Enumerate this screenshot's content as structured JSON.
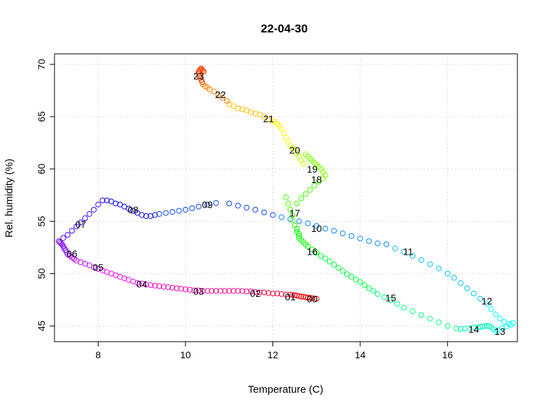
{
  "chart_data": {
    "type": "scatter",
    "title": "22-04-30",
    "xlabel": "Temperature (C)",
    "ylabel": "Rel. humidity (%)",
    "xlim": [
      7.0,
      17.6
    ],
    "ylim": [
      43.5,
      71.0
    ],
    "xticks": [
      8,
      10,
      12,
      14,
      16
    ],
    "yticks": [
      45,
      50,
      55,
      60,
      65,
      70
    ],
    "grid": true,
    "color_scale": "rainbow by hour of day (red 00 → red 23)",
    "hour_labels": [
      {
        "label": "00",
        "x": 12.9,
        "y": 47.6
      },
      {
        "label": "01",
        "x": 12.4,
        "y": 47.8
      },
      {
        "label": "02",
        "x": 11.6,
        "y": 48.1
      },
      {
        "label": "03",
        "x": 10.3,
        "y": 48.3
      },
      {
        "label": "04",
        "x": 9.0,
        "y": 49.0
      },
      {
        "label": "05",
        "x": 8.0,
        "y": 50.6
      },
      {
        "label": "06",
        "x": 7.4,
        "y": 51.9
      },
      {
        "label": "07",
        "x": 7.6,
        "y": 54.7
      },
      {
        "label": "08",
        "x": 8.8,
        "y": 56.1
      },
      {
        "label": "09",
        "x": 10.5,
        "y": 56.6
      },
      {
        "label": "10",
        "x": 13.0,
        "y": 54.3
      },
      {
        "label": "11",
        "x": 15.1,
        "y": 52.1
      },
      {
        "label": "12",
        "x": 16.9,
        "y": 47.4
      },
      {
        "label": "13",
        "x": 17.2,
        "y": 44.5
      },
      {
        "label": "14",
        "x": 16.6,
        "y": 44.7
      },
      {
        "label": "15",
        "x": 14.7,
        "y": 47.7
      },
      {
        "label": "16",
        "x": 12.9,
        "y": 52.1
      },
      {
        "label": "17",
        "x": 12.5,
        "y": 55.8
      },
      {
        "label": "18",
        "x": 13.0,
        "y": 59.0
      },
      {
        "label": "19",
        "x": 12.9,
        "y": 60.0
      },
      {
        "label": "20",
        "x": 12.5,
        "y": 61.8
      },
      {
        "label": "21",
        "x": 11.9,
        "y": 64.8
      },
      {
        "label": "22",
        "x": 10.8,
        "y": 67.1
      },
      {
        "label": "23",
        "x": 10.3,
        "y": 68.9
      }
    ],
    "series": [
      {
        "name": "00",
        "color": "#ff0000",
        "x": [
          13.0,
          12.9,
          12.85,
          12.8,
          12.75,
          12.7,
          12.65,
          12.6,
          12.55,
          12.5
        ],
        "y": [
          47.6,
          47.65,
          47.7,
          47.7,
          47.75,
          47.8,
          47.8,
          47.85,
          47.9,
          47.95
        ]
      },
      {
        "name": "01",
        "color": "#ff0040",
        "x": [
          12.45,
          12.4,
          12.3,
          12.2,
          12.1,
          12.0,
          11.9,
          11.8,
          11.7
        ],
        "y": [
          47.95,
          48.0,
          48.0,
          48.05,
          48.1,
          48.1,
          48.15,
          48.2,
          48.2
        ]
      },
      {
        "name": "02",
        "color": "#ff0080",
        "x": [
          11.6,
          11.5,
          11.4,
          11.3,
          11.2,
          11.1,
          11.0,
          10.9,
          10.8,
          10.7,
          10.6,
          10.5
        ],
        "y": [
          48.25,
          48.3,
          48.3,
          48.35,
          48.35,
          48.35,
          48.35,
          48.35,
          48.35,
          48.35,
          48.35,
          48.35
        ]
      },
      {
        "name": "03",
        "color": "#ff00bf",
        "x": [
          10.4,
          10.3,
          10.2,
          10.1,
          10.0,
          9.9,
          9.8,
          9.7,
          9.6,
          9.5,
          9.4,
          9.3
        ],
        "y": [
          48.35,
          48.4,
          48.4,
          48.45,
          48.5,
          48.55,
          48.6,
          48.65,
          48.7,
          48.75,
          48.8,
          48.85
        ]
      },
      {
        "name": "04",
        "color": "#ff00ff",
        "x": [
          9.2,
          9.1,
          9.0,
          8.9,
          8.8,
          8.7,
          8.6,
          8.5,
          8.4,
          8.3,
          8.2,
          8.1
        ],
        "y": [
          48.9,
          48.95,
          49.05,
          49.1,
          49.25,
          49.4,
          49.55,
          49.7,
          49.85,
          50.0,
          50.15,
          50.3
        ]
      },
      {
        "name": "05",
        "color": "#bf00ff",
        "x": [
          8.0,
          7.9,
          7.8,
          7.7,
          7.6,
          7.5,
          7.45,
          7.4,
          7.35
        ],
        "y": [
          50.45,
          50.6,
          50.8,
          50.95,
          51.1,
          51.25,
          51.4,
          51.55,
          51.7
        ]
      },
      {
        "name": "06",
        "color": "#8000ff",
        "x": [
          7.3,
          7.28,
          7.25,
          7.22,
          7.2,
          7.18,
          7.15,
          7.12,
          7.1
        ],
        "y": [
          51.85,
          52.05,
          52.25,
          52.45,
          52.6,
          52.75,
          52.9,
          53.0,
          53.1
        ]
      },
      {
        "name": "07",
        "color": "#4000ff",
        "x": [
          7.2,
          7.3,
          7.4,
          7.5,
          7.6,
          7.7,
          7.8,
          7.9,
          8.0,
          8.1
        ],
        "y": [
          53.4,
          53.7,
          54.1,
          54.5,
          54.9,
          55.3,
          55.7,
          56.1,
          56.6,
          57.0
        ]
      },
      {
        "name": "08",
        "color": "#0000ff",
        "x": [
          8.2,
          8.3,
          8.4,
          8.5,
          8.6,
          8.7,
          8.8,
          8.9,
          9.0,
          9.1,
          9.2,
          9.3
        ],
        "y": [
          57.0,
          56.9,
          56.7,
          56.6,
          56.4,
          56.2,
          56.0,
          55.8,
          55.6,
          55.5,
          55.5,
          55.6
        ]
      },
      {
        "name": "09",
        "color": "#0040ff",
        "x": [
          9.4,
          9.55,
          9.7,
          9.85,
          10.0,
          10.15,
          10.3,
          10.5,
          10.7,
          11.0,
          11.2,
          11.4,
          11.6,
          11.8,
          12.0
        ],
        "y": [
          55.7,
          55.8,
          55.9,
          56.0,
          56.1,
          56.25,
          56.4,
          56.6,
          56.75,
          56.7,
          56.5,
          56.3,
          56.1,
          55.85,
          55.6
        ]
      },
      {
        "name": "10",
        "color": "#0080ff",
        "x": [
          12.2,
          12.4,
          12.6,
          12.8,
          13.0,
          13.2,
          13.4,
          13.6,
          13.8,
          14.0,
          14.2,
          14.4,
          14.6
        ],
        "y": [
          55.4,
          55.2,
          55.0,
          54.8,
          54.55,
          54.3,
          54.1,
          53.85,
          53.6,
          53.35,
          53.1,
          52.9,
          52.8
        ]
      },
      {
        "name": "11",
        "color": "#00bfff",
        "x": [
          14.8,
          15.0,
          15.2,
          15.4,
          15.6,
          15.8,
          16.0,
          16.15,
          16.3,
          16.45,
          16.6,
          16.75
        ],
        "y": [
          52.4,
          52.1,
          51.7,
          51.3,
          50.9,
          50.5,
          50.0,
          49.6,
          49.1,
          48.6,
          48.1,
          47.6
        ]
      },
      {
        "name": "12",
        "color": "#00ffff",
        "x": [
          16.9,
          17.0,
          17.1,
          17.2,
          17.3,
          17.4,
          17.5,
          17.45,
          17.35,
          17.25,
          17.15,
          17.1
        ],
        "y": [
          47.1,
          46.6,
          46.1,
          45.7,
          45.4,
          45.2,
          45.3,
          45.1,
          44.95,
          44.8,
          44.6,
          44.45
        ]
      },
      {
        "name": "13",
        "color": "#00ffbf",
        "x": [
          17.05,
          17.0,
          16.95,
          16.9,
          16.85,
          16.8,
          16.75,
          16.7,
          16.6,
          16.5,
          16.4,
          16.3
        ],
        "y": [
          44.7,
          44.9,
          45.0,
          45.0,
          45.0,
          44.95,
          44.9,
          44.9,
          44.85,
          44.8,
          44.75,
          44.7
        ]
      },
      {
        "name": "14",
        "color": "#00ff80",
        "x": [
          16.2,
          16.0,
          15.8,
          15.6,
          15.4,
          15.2,
          15.0,
          14.85,
          14.7,
          14.55,
          14.4,
          14.3
        ],
        "y": [
          44.75,
          45.0,
          45.35,
          45.7,
          46.05,
          46.4,
          46.75,
          47.1,
          47.45,
          47.75,
          48.05,
          48.35
        ]
      },
      {
        "name": "15",
        "color": "#00ff40",
        "x": [
          14.2,
          14.1,
          14.0,
          13.9,
          13.8,
          13.7,
          13.6,
          13.5,
          13.4,
          13.3,
          13.2,
          13.1
        ],
        "y": [
          48.6,
          48.9,
          49.2,
          49.45,
          49.7,
          49.95,
          50.25,
          50.55,
          50.85,
          51.15,
          51.45,
          51.7
        ]
      },
      {
        "name": "16",
        "color": "#00ff00",
        "x": [
          13.0,
          12.9,
          12.8,
          12.75,
          12.7,
          12.65,
          12.6,
          12.6,
          12.6,
          12.55,
          12.55
        ],
        "y": [
          52.0,
          52.3,
          52.6,
          52.8,
          53.0,
          53.2,
          53.4,
          53.6,
          53.8,
          54.0,
          54.3
        ]
      },
      {
        "name": "17",
        "color": "#40ff00",
        "x": [
          12.5,
          12.45,
          12.45,
          12.4,
          12.35,
          12.3,
          12.55,
          12.65,
          12.75,
          12.85,
          12.95,
          13.05
        ],
        "y": [
          54.6,
          55.1,
          55.6,
          56.1,
          56.7,
          57.3,
          56.7,
          57.2,
          57.6,
          58.0,
          58.4,
          58.8
        ]
      },
      {
        "name": "18",
        "color": "#80ff00",
        "x": [
          13.15,
          13.2,
          13.15,
          13.1,
          13.05,
          13.0,
          12.95,
          12.9,
          12.85,
          12.8,
          12.75
        ],
        "y": [
          59.1,
          59.4,
          59.7,
          60.0,
          60.2,
          60.4,
          60.6,
          60.8,
          61.0,
          61.2,
          61.4
        ]
      },
      {
        "name": "19",
        "color": "#bfff00",
        "x": [
          12.7,
          12.65,
          12.6,
          12.55,
          12.5,
          12.45,
          12.4
        ],
        "y": [
          60.5,
          60.8,
          61.2,
          61.5,
          61.8,
          62.0,
          62.2
        ]
      },
      {
        "name": "20",
        "color": "#ffff00",
        "x": [
          12.35,
          12.3,
          12.25,
          12.2,
          12.15,
          12.1,
          12.05,
          12.0
        ],
        "y": [
          62.6,
          63.0,
          63.4,
          63.8,
          64.1,
          64.3,
          64.5,
          64.6
        ]
      },
      {
        "name": "21",
        "color": "#ffbf00",
        "x": [
          11.9,
          11.8,
          11.7,
          11.6,
          11.5,
          11.4,
          11.3,
          11.2,
          11.1,
          11.0
        ],
        "y": [
          64.8,
          65.0,
          65.2,
          65.3,
          65.4,
          65.6,
          65.7,
          65.8,
          66.0,
          66.2
        ]
      },
      {
        "name": "22",
        "color": "#ff8000",
        "x": [
          10.95,
          10.85,
          10.75,
          10.65,
          10.55,
          10.5,
          10.45,
          10.4
        ],
        "y": [
          66.5,
          66.8,
          67.1,
          67.4,
          67.6,
          67.8,
          67.9,
          68.1
        ]
      },
      {
        "name": "23",
        "color": "#ff4000",
        "x": [
          10.38,
          10.36,
          10.34,
          10.32,
          10.3,
          10.3,
          10.32,
          10.34,
          10.36,
          10.38,
          10.4,
          10.42
        ],
        "y": [
          68.3,
          68.5,
          68.7,
          68.9,
          69.1,
          69.3,
          69.4,
          69.5,
          69.6,
          69.5,
          69.4,
          69.3
        ]
      }
    ]
  }
}
